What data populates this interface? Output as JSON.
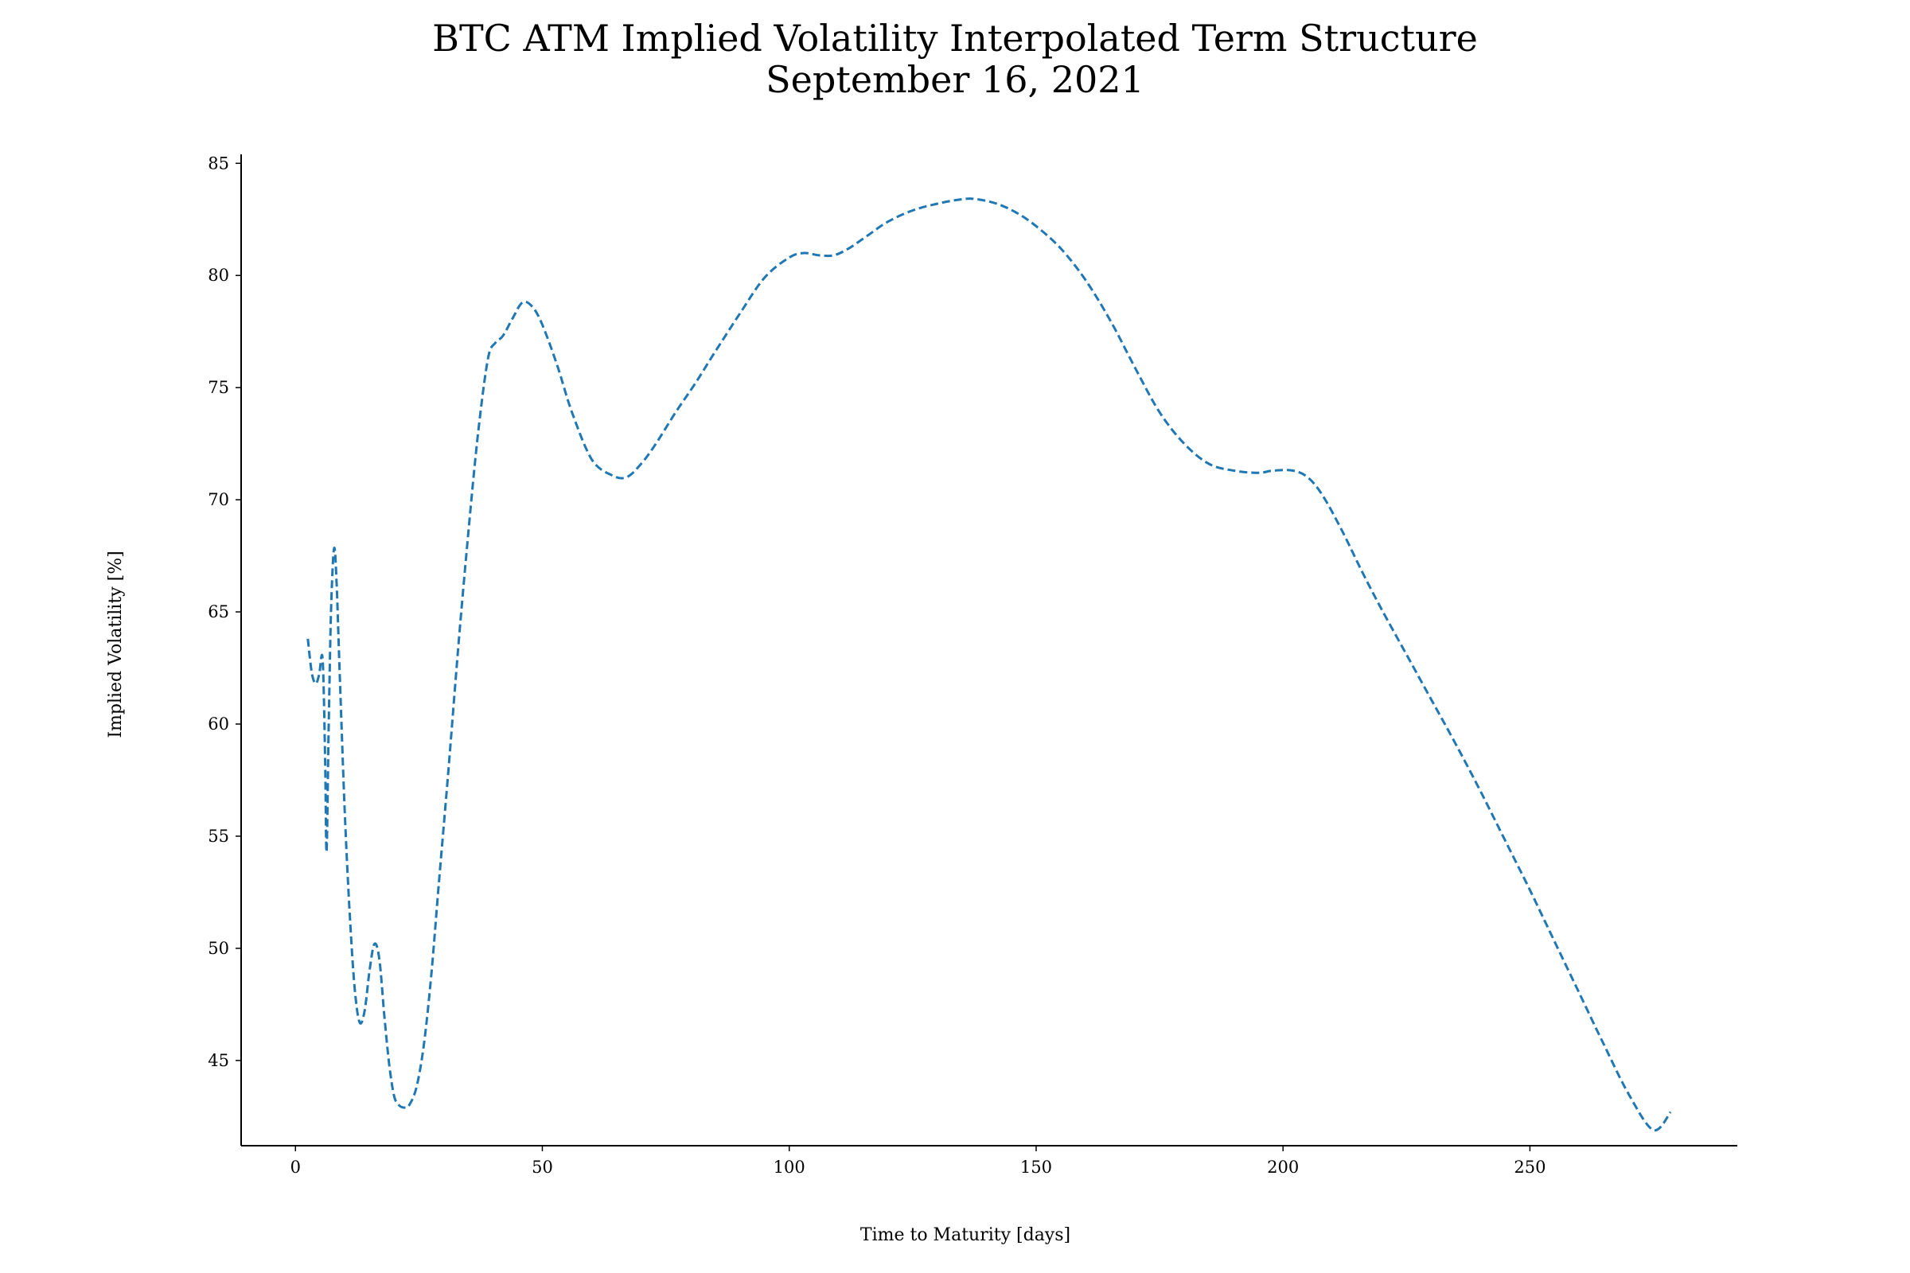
{
  "chart_data": {
    "type": "line",
    "title": "BTC ATM Implied Volatility Interpolated Term Structure",
    "subtitle": "September 16, 2021",
    "xlabel": "Time to Maturity [days]",
    "ylabel": "Implied Volatility [%]",
    "xlim": [
      -11,
      292
    ],
    "ylim": [
      41.2,
      85.4
    ],
    "xticks": [
      0,
      50,
      100,
      150,
      200,
      250
    ],
    "yticks": [
      45,
      50,
      55,
      60,
      65,
      70,
      75,
      80,
      85
    ],
    "grid": false,
    "line_style": "dashed",
    "color": "#1f77b4",
    "series": [
      {
        "x": [
          2.5,
          3.3,
          4.1,
          4.8,
          5.5,
          6.0,
          6.3,
          6.7,
          7.2,
          7.8,
          8.3,
          9.0,
          10.0,
          11.0,
          12.0,
          13.0,
          14.0,
          15.0,
          16.0,
          17.0,
          18.0,
          19.0,
          20.0,
          21.0,
          22.0,
          23.0,
          24.5,
          26.0,
          27.5,
          29.0,
          31.0,
          33.0,
          35.0,
          37.0,
          39.0,
          40.5,
          42.0,
          44.0,
          46.0,
          48.0,
          50.0,
          53.0,
          56.0,
          60.0,
          64.0,
          67.0,
          70.0,
          73.0,
          77.0,
          81.0,
          85.0,
          90.0,
          95.0,
          100.0,
          103.0,
          106.0,
          109.0,
          112.0,
          116.0,
          120.0,
          125.0,
          130.0,
          135.0,
          138.0,
          142.0,
          146.0,
          150.0,
          155.0,
          160.0,
          165.0,
          170.0,
          175.0,
          180.0,
          185.0,
          190.0,
          195.0,
          198.0,
          202.0,
          205.0,
          208.0,
          212.0,
          216.0,
          220.0,
          225.0,
          230.0,
          235.0,
          240.0,
          245.0,
          250.0,
          255.0,
          260.0,
          265.0,
          270.0,
          275.0,
          278.5
        ],
        "y": [
          63.8,
          62.3,
          61.8,
          62.2,
          62.9,
          58.5,
          54.3,
          59.5,
          65.0,
          67.8,
          66.5,
          62.0,
          56.0,
          51.5,
          48.2,
          46.7,
          47.2,
          49.0,
          50.2,
          49.5,
          47.0,
          44.8,
          43.4,
          43.0,
          42.9,
          43.0,
          43.8,
          45.7,
          48.8,
          52.8,
          58.0,
          63.5,
          68.5,
          73.0,
          76.3,
          77.0,
          77.3,
          78.1,
          78.8,
          78.6,
          77.8,
          76.0,
          73.9,
          71.8,
          71.1,
          71.0,
          71.6,
          72.5,
          73.9,
          75.2,
          76.6,
          78.3,
          79.9,
          80.8,
          81.0,
          80.9,
          80.9,
          81.2,
          81.8,
          82.4,
          82.9,
          83.2,
          83.4,
          83.4,
          83.2,
          82.8,
          82.2,
          81.2,
          79.8,
          78.0,
          75.9,
          73.9,
          72.5,
          71.6,
          71.3,
          71.2,
          71.3,
          71.3,
          71.0,
          70.2,
          68.6,
          66.8,
          65.1,
          63.1,
          61.1,
          59.1,
          57.0,
          54.8,
          52.6,
          50.3,
          48.0,
          45.7,
          43.5,
          41.9,
          42.7
        ]
      }
    ]
  }
}
